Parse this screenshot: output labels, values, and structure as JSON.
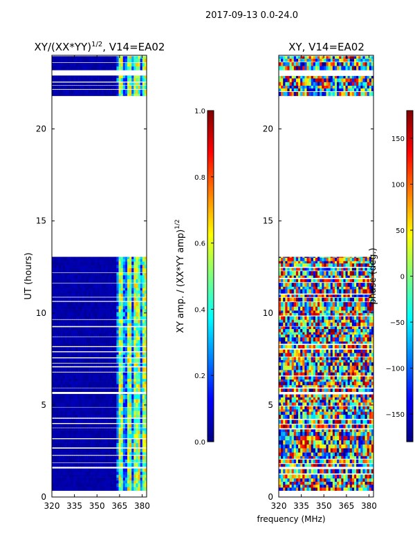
{
  "suptitle": "2017-09-13 0.0-24.0",
  "colors": {
    "jet": [
      "#00007f",
      "#0000ff",
      "#007fff",
      "#00ffff",
      "#7fff7f",
      "#ffff00",
      "#ff7f00",
      "#ff0000",
      "#7f0000"
    ],
    "background": "#ffffff",
    "axis": "#000000"
  },
  "chart_data": [
    {
      "type": "heatmap",
      "title": "XY/(XX*YY)^1/2, V14=EA02",
      "title_main": "XY/(XX*YY)",
      "title_sup": "1/2",
      "title_tail": ", V14=EA02",
      "xlabel": "frequency (MHz)",
      "ylabel": "UT (hours)",
      "xlim": [
        320,
        383
      ],
      "ylim": [
        0,
        24
      ],
      "xticks": [
        320,
        335,
        350,
        365,
        380
      ],
      "yticks": [
        0,
        5,
        10,
        15,
        20
      ],
      "colorbar": {
        "label_main": "XY amp. / (XX*YY amp)",
        "label_sup": "1/2",
        "range": [
          0.0,
          1.0
        ],
        "ticks": [
          "0.0",
          "0.2",
          "0.4",
          "0.6",
          "0.8",
          "1.0"
        ]
      },
      "data_bands_hours": [
        [
          0.35,
          1.55
        ],
        [
          1.65,
          5.6
        ],
        [
          5.72,
          13.05
        ],
        [
          21.8,
          22.9
        ],
        [
          23.2,
          23.95
        ]
      ]
    },
    {
      "type": "heatmap",
      "title": "XY, V14=EA02",
      "xlabel": "frequency (MHz)",
      "ylabel": "",
      "xlim": [
        320,
        383
      ],
      "ylim": [
        0,
        24
      ],
      "xticks": [
        320,
        335,
        350,
        365,
        380
      ],
      "yticks": [
        0,
        5,
        10,
        15,
        20
      ],
      "colorbar": {
        "label": "phase (deg.)",
        "range": [
          -180,
          180
        ],
        "ticks": [
          "−150",
          "−100",
          "−50",
          "0",
          "50",
          "100",
          "150"
        ],
        "tick_values": [
          -150,
          -100,
          -50,
          0,
          50,
          100,
          150
        ]
      },
      "data_bands_hours": [
        [
          0.35,
          1.55
        ],
        [
          1.65,
          5.6
        ],
        [
          5.72,
          13.05
        ],
        [
          21.8,
          22.9
        ],
        [
          23.2,
          23.95
        ]
      ]
    }
  ]
}
